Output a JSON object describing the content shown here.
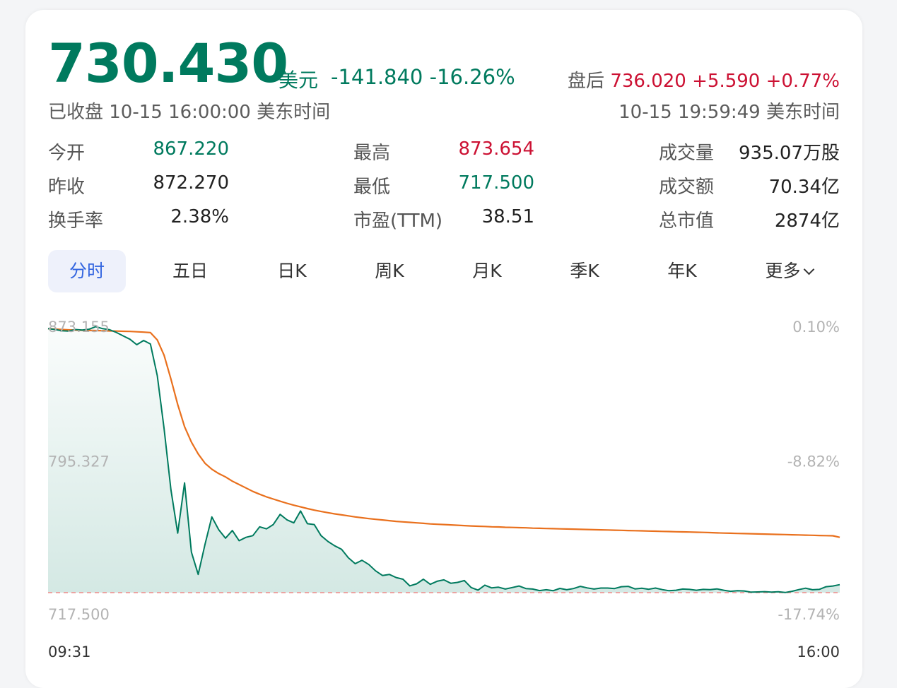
{
  "quote": {
    "price": "730.430",
    "currency": "美元",
    "change": "-141.840",
    "change_pct": "-16.26%",
    "status": "已收盘 10-15 16:00:00 美东时间",
    "after_label": "盘后",
    "after_price": "736.020",
    "after_change": "+5.590",
    "after_pct": "+0.77%",
    "after_time": "10-15 19:59:49 美东时间"
  },
  "stats": [
    {
      "label": "今开",
      "value": "867.220",
      "color": "#007a5e"
    },
    {
      "label": "最高",
      "value": "873.654",
      "color": "#cc1133"
    },
    {
      "label": "成交量",
      "value": "935.07万股",
      "color": "#222222"
    },
    {
      "label": "昨收",
      "value": "872.270",
      "color": "#222222"
    },
    {
      "label": "最低",
      "value": "717.500",
      "color": "#007a5e"
    },
    {
      "label": "成交额",
      "value": "70.34亿",
      "color": "#222222"
    },
    {
      "label": "换手率",
      "value": "2.38%",
      "color": "#222222"
    },
    {
      "label": "市盈(TTM)",
      "value": "38.51",
      "color": "#222222"
    },
    {
      "label": "总市值",
      "value": "2874亿",
      "color": "#222222"
    }
  ],
  "tabs": [
    "分时",
    "五日",
    "日K",
    "周K",
    "月K",
    "季K",
    "年K",
    "更多"
  ],
  "active_tab": 0,
  "chart_data": {
    "type": "line",
    "x_start": "09:31",
    "x_end": "16:00",
    "ylim": [
      717.5,
      873.155
    ],
    "left_ticks": [
      "873.155",
      "795.327",
      "717.500"
    ],
    "right_ticks": [
      "0.10%",
      "-8.82%",
      "-17.74%"
    ],
    "reference_low": 717.5,
    "colors": {
      "price": "#007a5e",
      "avg": "#e9701d",
      "ref": "#ef8a8a"
    },
    "series": [
      {
        "values": [
          872.6,
          872.1,
          871.4,
          871.2,
          872.1,
          871.8,
          872.3,
          873.8,
          872.6,
          872.0,
          870.4,
          868.4,
          866.4,
          863.2,
          865.7,
          863.6,
          845.0,
          814.0,
          778.0,
          752.5,
          782.0,
          741.3,
          728.2,
          746.0,
          762.0,
          754.5,
          749.5,
          754.0,
          748.0,
          750.0,
          751.0,
          756.2,
          755.0,
          757.5,
          763.5,
          760.3,
          758.5,
          765.5,
          758.0,
          757.5,
          751.0,
          747.6,
          745.0,
          743.0,
          738.0,
          734.5,
          736.5,
          734.0,
          730.3,
          727.6,
          728.2,
          726.4,
          725.4,
          721.5,
          722.7,
          725.4,
          722.4,
          724.2,
          725.0,
          723.0,
          723.5,
          724.6,
          720.5,
          719.0,
          721.9,
          720.3,
          720.7,
          719.6,
          720.5,
          721.4,
          719.9,
          719.6,
          718.7,
          719.2,
          718.6,
          720.0,
          719.2,
          719.9,
          721.2,
          720.3,
          719.6,
          720.2,
          720.2,
          719.9,
          721.0,
          721.2,
          719.7,
          720.1,
          719.5,
          720.2,
          719.3,
          718.6,
          718.9,
          719.6,
          719.4,
          718.9,
          719.4,
          719.3,
          719.7,
          718.9,
          718.3,
          718.6,
          718.5,
          717.8,
          717.9,
          718.1,
          717.8,
          718.0,
          717.6,
          718.3,
          719.3,
          720.1,
          719.2,
          719.4,
          721.0,
          721.4,
          722.2
        ],
        "desc": "price"
      },
      {
        "values": [
          872.6,
          872.4,
          872.1,
          871.9,
          871.8,
          871.7,
          871.6,
          871.5,
          871.4,
          871.3,
          871.2,
          871.1,
          871.0,
          870.8,
          870.6,
          870.3,
          866.0,
          857.0,
          843.0,
          828.0,
          815.0,
          806.0,
          799.0,
          793.5,
          790.0,
          787.5,
          785.5,
          783.0,
          781.0,
          779.0,
          777.0,
          775.3,
          773.8,
          772.5,
          771.2,
          770.0,
          768.9,
          767.9,
          766.9,
          766.0,
          765.2,
          764.5,
          763.8,
          763.2,
          762.6,
          762.0,
          761.5,
          761.0,
          760.6,
          760.2,
          759.8,
          759.4,
          759.1,
          758.8,
          758.5,
          758.2,
          757.9,
          757.7,
          757.5,
          757.3,
          757.1,
          756.9,
          756.7,
          756.5,
          756.4,
          756.2,
          756.1,
          755.9,
          755.8,
          755.7,
          755.6,
          755.4,
          755.3,
          755.2,
          755.1,
          755.0,
          754.9,
          754.8,
          754.7,
          754.6,
          754.5,
          754.4,
          754.3,
          754.2,
          754.1,
          754.0,
          753.9,
          753.8,
          753.7,
          753.6,
          753.5,
          753.4,
          753.3,
          753.2,
          753.1,
          753.0,
          752.9,
          752.8,
          752.6,
          752.5,
          752.4,
          752.3,
          752.2,
          752.1,
          752.0,
          751.9,
          751.8,
          751.7,
          751.6,
          751.5,
          751.4,
          751.3,
          751.2,
          751.1,
          751.0,
          750.9,
          750.0
        ],
        "desc": "avg"
      }
    ]
  }
}
